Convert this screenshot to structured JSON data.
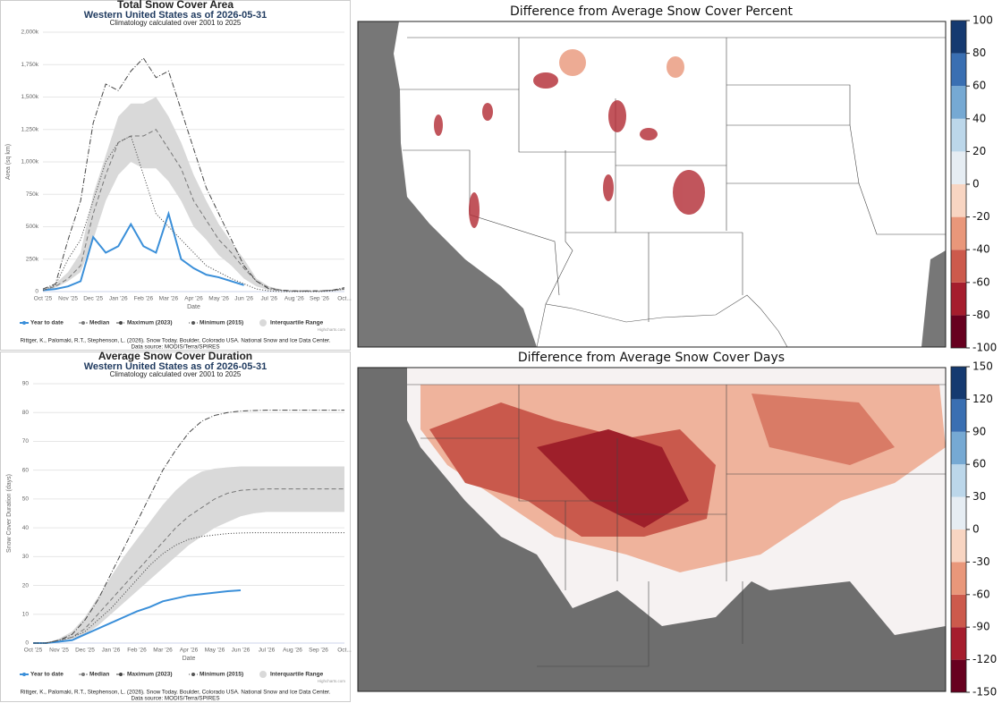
{
  "chart_data": [
    {
      "type": "line",
      "title": "Total Snow Cover Area",
      "subtitle": "Western United States as of 2026-05-31",
      "note": "Climatology calculated over 2001 to 2025",
      "x_label": "Date",
      "y_label": "Area (sq km)",
      "categories": [
        "Oct '25",
        null,
        "Nov '25",
        null,
        "Dec '25",
        null,
        "Jan '26",
        null,
        "Feb '26",
        null,
        "Mar '26",
        null,
        "Apr '26",
        null,
        "May '26",
        null,
        "Jun '26",
        null,
        "Jul '26",
        null,
        "Aug '26",
        null,
        "Sep '26",
        null,
        "Oct..."
      ],
      "ylim": [
        0,
        2000000
      ],
      "yticks": [
        0,
        {
          "value": 250000,
          "label": "250k"
        },
        {
          "value": 500000,
          "label": "500k"
        },
        {
          "value": 750000,
          "label": "750k"
        },
        {
          "value": 1000000,
          "label": "1,000k"
        },
        {
          "value": 1250000,
          "label": "1,250k"
        },
        {
          "value": 1500000,
          "label": "1,500k"
        },
        {
          "value": 1750000,
          "label": "1,750k"
        },
        {
          "value": 2000000,
          "label": "2,000k"
        }
      ],
      "grid": true,
      "series": [
        {
          "name": "Year to date",
          "color": "#3a8fd9",
          "values": [
            10000,
            20000,
            40000,
            80000,
            420000,
            300000,
            350000,
            520000,
            350000,
            300000,
            600000,
            250000,
            180000,
            130000,
            110000,
            80000,
            50000,
            null,
            null,
            null,
            null,
            null,
            null,
            null,
            null
          ]
        },
        {
          "name": "Median",
          "color": "#777777",
          "values": [
            10000,
            40000,
            100000,
            200000,
            600000,
            900000,
            1150000,
            1200000,
            1200000,
            1250000,
            1100000,
            950000,
            700000,
            550000,
            400000,
            300000,
            180000,
            80000,
            30000,
            10000,
            5000,
            5000,
            5000,
            10000,
            20000
          ]
        },
        {
          "name": "Maximum (2023)",
          "color": "#444444",
          "values": [
            20000,
            60000,
            400000,
            700000,
            1300000,
            1600000,
            1550000,
            1700000,
            1800000,
            1650000,
            1700000,
            1400000,
            1100000,
            800000,
            600000,
            400000,
            200000,
            80000,
            20000,
            10000,
            5000,
            5000,
            5000,
            10000,
            30000
          ]
        },
        {
          "name": "Minimum (2015)",
          "color": "#555555",
          "values": [
            10000,
            50000,
            250000,
            400000,
            700000,
            1000000,
            1150000,
            1200000,
            900000,
            600000,
            500000,
            400000,
            300000,
            200000,
            150000,
            100000,
            60000,
            20000,
            5000,
            0,
            0,
            0,
            0,
            5000,
            20000
          ]
        },
        {
          "name": "Interquartile Range",
          "color": "#d9d9d9",
          "low": [
            5000,
            30000,
            80000,
            150000,
            400000,
            700000,
            900000,
            1000000,
            950000,
            950000,
            850000,
            700000,
            500000,
            400000,
            280000,
            200000,
            100000,
            40000,
            10000,
            5000,
            0,
            0,
            0,
            5000,
            10000
          ],
          "high": [
            15000,
            60000,
            150000,
            300000,
            750000,
            1050000,
            1350000,
            1450000,
            1450000,
            1500000,
            1350000,
            1150000,
            900000,
            700000,
            520000,
            380000,
            250000,
            100000,
            40000,
            15000,
            8000,
            8000,
            8000,
            15000,
            30000
          ]
        }
      ],
      "credit": "Highcharts.com",
      "citation": "Rittger, K., Palomaki, R.T., Stephenson, L. (2026). Snow Today. Boulder, Colorado USA. National Snow and Ice Data Center.",
      "source": "Data source: MODIS/Terra/SPIRES"
    },
    {
      "type": "line",
      "title": "Average Snow Cover Duration",
      "subtitle": "Western United States as of 2026-05-31",
      "note": "Climatology calculated over 2001 to 2025",
      "x_label": "Date",
      "y_label": "Snow Cover Duration (days)",
      "categories": [
        "Oct '25",
        null,
        "Nov '25",
        null,
        "Dec '25",
        null,
        "Jan '26",
        null,
        "Feb '26",
        null,
        "Mar '26",
        null,
        "Apr '26",
        null,
        "May '26",
        null,
        "Jun '26",
        null,
        "Jul '26",
        null,
        "Aug '26",
        null,
        "Sep '26",
        null,
        "Oct..."
      ],
      "ylim": [
        0,
        90
      ],
      "yticks": [
        0,
        10,
        20,
        30,
        40,
        50,
        60,
        70,
        80,
        90
      ],
      "grid": true,
      "series": [
        {
          "name": "Year to date",
          "color": "#3a8fd9",
          "values": [
            0,
            0,
            0.5,
            1,
            3,
            5,
            7,
            9,
            11,
            12.5,
            14.5,
            15.5,
            16.5,
            17,
            17.5,
            18,
            18.3,
            null,
            null,
            null,
            null,
            null,
            null,
            null,
            null
          ]
        },
        {
          "name": "Median",
          "color": "#777777",
          "values": [
            0,
            0,
            1,
            2,
            5,
            10,
            15,
            20,
            25,
            30,
            35,
            40,
            44,
            47,
            50,
            52,
            53,
            53.3,
            53.5,
            53.5,
            53.5,
            53.5,
            53.5,
            53.5,
            53.5
          ]
        },
        {
          "name": "Maximum (2023)",
          "color": "#444444",
          "values": [
            0,
            0,
            1,
            3,
            8,
            15,
            24,
            33,
            42,
            51,
            60,
            67,
            73,
            77,
            79,
            80,
            80.5,
            80.7,
            80.8,
            80.8,
            80.8,
            80.8,
            80.8,
            80.8,
            80.8
          ]
        },
        {
          "name": "Minimum (2015)",
          "color": "#555555",
          "values": [
            0,
            0,
            1,
            2,
            4,
            8,
            12,
            17,
            22,
            27,
            31,
            34,
            36,
            37,
            37.5,
            38,
            38.2,
            38.3,
            38.3,
            38.3,
            38.3,
            38.3,
            38.3,
            38.3,
            38.3
          ]
        },
        {
          "name": "Interquartile Range",
          "color": "#d9d9d9",
          "low": [
            0,
            0,
            0.5,
            1.5,
            3,
            6,
            10,
            14,
            18,
            22,
            26,
            30,
            34,
            37,
            40,
            42,
            44,
            45,
            45.5,
            45.5,
            45.5,
            45.5,
            45.5,
            45.5,
            45.5
          ],
          "high": [
            0,
            0,
            1.5,
            4,
            9,
            16,
            23,
            30,
            36,
            42,
            48,
            53,
            57,
            59.5,
            60.5,
            61,
            61.3,
            61.3,
            61.3,
            61.3,
            61.3,
            61.3,
            61.3,
            61.3,
            61.3
          ]
        }
      ],
      "credit": "Highcharts.com",
      "citation": "Rittger, K., Palomaki, R.T., Stephenson, L. (2026). Snow Today. Boulder, Colorado USA. National Snow and Ice Data Center.",
      "source": "Data source: MODIS/Terra/SPIRES"
    },
    {
      "type": "map",
      "title": "Difference from Average Snow Cover Percent",
      "colorbar": {
        "ticks": [
          -100,
          -80,
          -60,
          -40,
          -20,
          0,
          20,
          40,
          60,
          80,
          100
        ],
        "colors": [
          "#67001f",
          "#a51d2d",
          "#cc5a4c",
          "#e9977a",
          "#f8d5c2",
          "#e6edf3",
          "#bcd7ea",
          "#76a9d3",
          "#3a6fb2",
          "#153a70"
        ]
      }
    },
    {
      "type": "map",
      "title": "Difference from Average Snow Cover Days",
      "colorbar": {
        "ticks": [
          -150,
          -120,
          -90,
          -60,
          -30,
          0,
          30,
          60,
          90,
          120,
          150
        ],
        "colors": [
          "#67001f",
          "#a51d2d",
          "#cc5a4c",
          "#e9977a",
          "#f8d5c2",
          "#e6edf3",
          "#bcd7ea",
          "#76a9d3",
          "#3a6fb2",
          "#153a70"
        ]
      }
    }
  ]
}
